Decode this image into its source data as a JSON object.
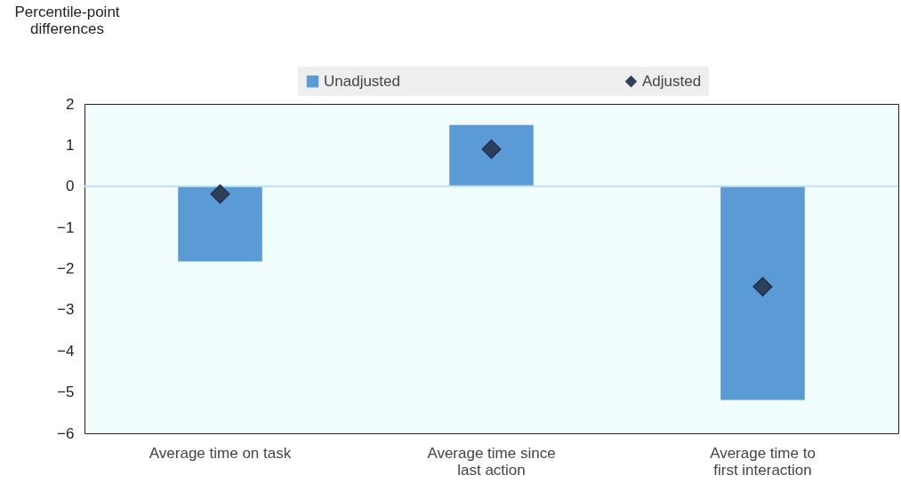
{
  "chart_data": {
    "type": "bar",
    "ylabel": "Percentile-point differences",
    "categories": [
      "Average time on task",
      "Average time since last action",
      "Average time to first interaction"
    ],
    "series": [
      {
        "name": "Unadjusted",
        "type": "bar",
        "color": "#5b9bd5",
        "values": [
          -1.83,
          1.49,
          -5.19
        ]
      },
      {
        "name": "Adjusted",
        "type": "scatter",
        "color": "#2e3f58",
        "values": [
          -0.19,
          0.9,
          -2.44
        ]
      }
    ],
    "marker": "diamond",
    "legend": "top",
    "ylim": [
      -6,
      2
    ],
    "yticks": [
      -6,
      -5,
      -4,
      -3,
      -2,
      -1,
      0,
      1,
      2
    ],
    "ref_lines": [
      {
        "axis": "y",
        "value": 0,
        "color": "#bfe3ee"
      }
    ]
  }
}
